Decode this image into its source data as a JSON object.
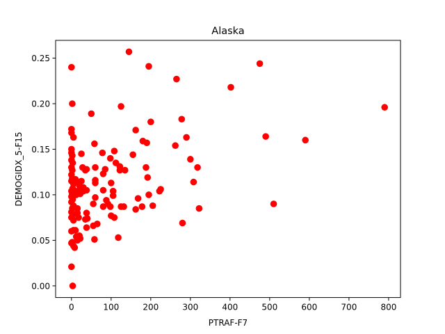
{
  "chart_data": {
    "type": "scatter",
    "title": "Alaska",
    "xlabel": "PTRAF-F7",
    "ylabel": "DEMOGIDX_5-F15",
    "xlim": [
      -40,
      830
    ],
    "ylim": [
      -0.0128,
      0.2695
    ],
    "xticks": [
      0,
      100,
      200,
      300,
      400,
      500,
      600,
      700,
      800
    ],
    "yticks": [
      0.0,
      0.05,
      0.1,
      0.15,
      0.2,
      0.25
    ],
    "ytick_labels": [
      "0.00",
      "0.05",
      "0.10",
      "0.15",
      "0.20",
      "0.25"
    ],
    "grid": false,
    "marker_color": "#ff0000",
    "points": [
      [
        0,
        0.24
      ],
      [
        2,
        0.2
      ],
      [
        0,
        0.172
      ],
      [
        0,
        0.168
      ],
      [
        5,
        0.163
      ],
      [
        0,
        0.15
      ],
      [
        0,
        0.146
      ],
      [
        2,
        0.143
      ],
      [
        0,
        0.138
      ],
      [
        3,
        0.135
      ],
      [
        0,
        0.13
      ],
      [
        2,
        0.127
      ],
      [
        0,
        0.122
      ],
      [
        2,
        0.118
      ],
      [
        0,
        0.115
      ],
      [
        5,
        0.112
      ],
      [
        3,
        0.107
      ],
      [
        0,
        0.104
      ],
      [
        2,
        0.101
      ],
      [
        0,
        0.098
      ],
      [
        3,
        0.095
      ],
      [
        0,
        0.092
      ],
      [
        5,
        0.088
      ],
      [
        2,
        0.085
      ],
      [
        0,
        0.081
      ],
      [
        3,
        0.078
      ],
      [
        0,
        0.075
      ],
      [
        5,
        0.072
      ],
      [
        0,
        0.06
      ],
      [
        5,
        0.061
      ],
      [
        2,
        0.048
      ],
      [
        0,
        0.047
      ],
      [
        5,
        0.044
      ],
      [
        8,
        0.042
      ],
      [
        0,
        0.021
      ],
      [
        3,
        0.0
      ],
      [
        10,
        0.117
      ],
      [
        10,
        0.104
      ],
      [
        12,
        0.1
      ],
      [
        15,
        0.085
      ],
      [
        15,
        0.08
      ],
      [
        18,
        0.075
      ],
      [
        10,
        0.061
      ],
      [
        12,
        0.054
      ],
      [
        15,
        0.05
      ],
      [
        18,
        0.113
      ],
      [
        20,
        0.11
      ],
      [
        20,
        0.105
      ],
      [
        22,
        0.101
      ],
      [
        25,
        0.145
      ],
      [
        28,
        0.13
      ],
      [
        30,
        0.104
      ],
      [
        30,
        0.108
      ],
      [
        25,
        0.115
      ],
      [
        22,
        0.052
      ],
      [
        20,
        0.055
      ],
      [
        35,
        0.127
      ],
      [
        38,
        0.128
      ],
      [
        38,
        0.105
      ],
      [
        38,
        0.08
      ],
      [
        35,
        0.073
      ],
      [
        38,
        0.064
      ],
      [
        40,
        0.074
      ],
      [
        50,
        0.189
      ],
      [
        58,
        0.156
      ],
      [
        60,
        0.13
      ],
      [
        60,
        0.116
      ],
      [
        60,
        0.113
      ],
      [
        60,
        0.097
      ],
      [
        55,
        0.09
      ],
      [
        55,
        0.066
      ],
      [
        58,
        0.051
      ],
      [
        65,
        0.068
      ],
      [
        78,
        0.146
      ],
      [
        80,
        0.123
      ],
      [
        85,
        0.128
      ],
      [
        80,
        0.105
      ],
      [
        88,
        0.094
      ],
      [
        92,
        0.09
      ],
      [
        80,
        0.087
      ],
      [
        98,
        0.087
      ],
      [
        98,
        0.14
      ],
      [
        100,
        0.113
      ],
      [
        105,
        0.104
      ],
      [
        105,
        0.099
      ],
      [
        100,
        0.077
      ],
      [
        108,
        0.075
      ],
      [
        108,
        0.148
      ],
      [
        112,
        0.135
      ],
      [
        118,
        0.053
      ],
      [
        122,
        0.131
      ],
      [
        125,
        0.197
      ],
      [
        122,
        0.127
      ],
      [
        135,
        0.127
      ],
      [
        125,
        0.087
      ],
      [
        132,
        0.087
      ],
      [
        145,
        0.257
      ],
      [
        155,
        0.144
      ],
      [
        162,
        0.171
      ],
      [
        162,
        0.084
      ],
      [
        168,
        0.096
      ],
      [
        180,
        0.159
      ],
      [
        178,
        0.087
      ],
      [
        188,
        0.13
      ],
      [
        190,
        0.157
      ],
      [
        192,
        0.119
      ],
      [
        195,
        0.1
      ],
      [
        195,
        0.241
      ],
      [
        200,
        0.18
      ],
      [
        205,
        0.088
      ],
      [
        222,
        0.104
      ],
      [
        225,
        0.106
      ],
      [
        265,
        0.227
      ],
      [
        262,
        0.154
      ],
      [
        278,
        0.183
      ],
      [
        280,
        0.069
      ],
      [
        290,
        0.163
      ],
      [
        300,
        0.139
      ],
      [
        308,
        0.114
      ],
      [
        318,
        0.13
      ],
      [
        322,
        0.085
      ],
      [
        402,
        0.218
      ],
      [
        475,
        0.244
      ],
      [
        490,
        0.164
      ],
      [
        510,
        0.09
      ],
      [
        590,
        0.16
      ],
      [
        790,
        0.196
      ]
    ]
  }
}
